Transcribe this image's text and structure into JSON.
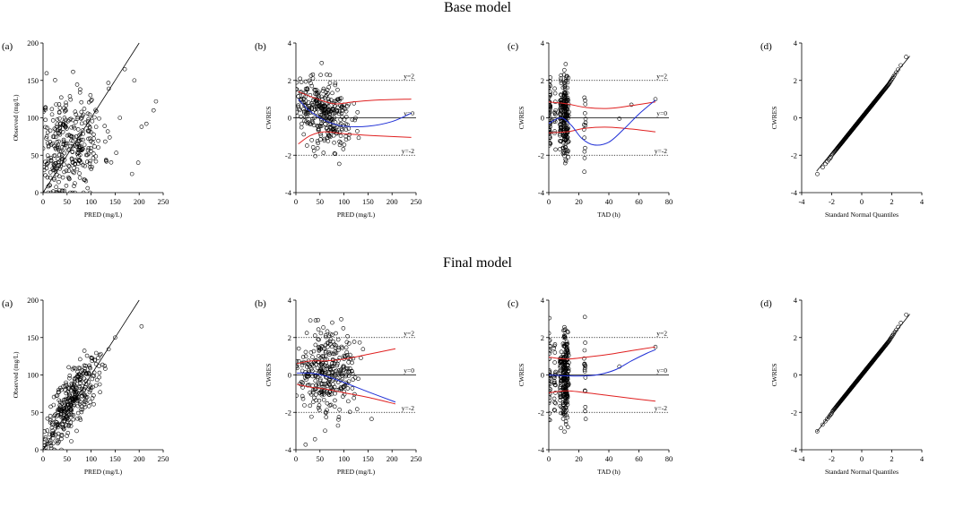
{
  "titles": {
    "base": "Base model",
    "final": "Final model"
  },
  "chart_data": [
    {
      "id": "base-a",
      "type": "scatter",
      "panel_label": "(a)",
      "xlabel": "PRED (mg/L)",
      "ylabel": "Observed (mg/L)",
      "xlim": [
        0,
        250
      ],
      "ylim": [
        0,
        200
      ],
      "xticks": [
        0,
        50,
        100,
        150,
        200,
        250
      ],
      "yticks": [
        0,
        50,
        100,
        150,
        200
      ],
      "reference_line": {
        "kind": "identity",
        "from": [
          0,
          0
        ],
        "to": [
          200,
          200
        ]
      },
      "point_model": {
        "n": 330,
        "x_center": 55,
        "x_spread": 35,
        "y_center": 65,
        "y_spread": 35,
        "slope": 0.15,
        "seed": 11
      },
      "highlighted_points": [
        [
          170,
          165
        ],
        [
          190,
          150
        ],
        [
          198,
          40
        ],
        [
          205,
          88
        ],
        [
          215,
          92
        ],
        [
          230,
          110
        ],
        [
          235,
          122
        ],
        [
          160,
          100
        ],
        [
          185,
          25
        ]
      ]
    },
    {
      "id": "base-b",
      "type": "scatter",
      "panel_label": "(b)",
      "xlabel": "PRED (mg/L)",
      "ylabel": "CWRES",
      "xlim": [
        0,
        250
      ],
      "ylim": [
        -4,
        4
      ],
      "xticks": [
        0,
        50,
        100,
        150,
        200,
        250
      ],
      "yticks": [
        -4,
        -2,
        0,
        2,
        4
      ],
      "hlines": [
        {
          "y": 2,
          "label": "y=2",
          "style": "dotted"
        },
        {
          "y": 0,
          "label": "y=0",
          "style": "solid"
        },
        {
          "y": -2,
          "label": "y=-2",
          "style": "dotted"
        }
      ],
      "trend_line": {
        "color": "#1f2fd6",
        "points": [
          [
            5,
            1.0
          ],
          [
            25,
            0.45
          ],
          [
            50,
            0.0
          ],
          [
            75,
            -0.3
          ],
          [
            100,
            -0.45
          ],
          [
            150,
            -0.45
          ],
          [
            200,
            -0.2
          ],
          [
            240,
            0.25
          ]
        ]
      },
      "upper_band": {
        "color": "#e02020",
        "points": [
          [
            5,
            1.4
          ],
          [
            40,
            1.05
          ],
          [
            80,
            0.75
          ],
          [
            120,
            0.85
          ],
          [
            170,
            0.95
          ],
          [
            240,
            1.0
          ]
        ]
      },
      "lower_band": {
        "color": "#e02020",
        "points": [
          [
            5,
            -1.4
          ],
          [
            30,
            -0.95
          ],
          [
            60,
            -0.75
          ],
          [
            100,
            -0.85
          ],
          [
            160,
            -0.95
          ],
          [
            240,
            -1.05
          ]
        ]
      },
      "point_model": {
        "n": 320,
        "x_center": 55,
        "x_spread": 30,
        "y_center": 0.3,
        "y_spread": 0.85,
        "slope": -0.012,
        "seed": 23
      }
    },
    {
      "id": "base-c",
      "type": "scatter",
      "panel_label": "(c)",
      "xlabel": "TAD (h)",
      "ylabel": "CWRES",
      "xlim": [
        0,
        80
      ],
      "ylim": [
        -4,
        4
      ],
      "xticks": [
        0,
        20,
        40,
        60,
        80
      ],
      "yticks": [
        -4,
        -2,
        0,
        2,
        4
      ],
      "hlines": [
        {
          "y": 2,
          "label": "y=2",
          "style": "dotted"
        },
        {
          "y": 0,
          "label": "y=0",
          "style": "solid"
        },
        {
          "y": -2,
          "label": "y=-2",
          "style": "dotted"
        }
      ],
      "trend_line": {
        "color": "#1f2fd6",
        "points": [
          [
            0,
            -0.3
          ],
          [
            8,
            0.0
          ],
          [
            15,
            -0.4
          ],
          [
            22,
            -1.1
          ],
          [
            30,
            -1.45
          ],
          [
            40,
            -1.3
          ],
          [
            50,
            -0.6
          ],
          [
            60,
            0.2
          ],
          [
            71,
            0.95
          ]
        ]
      },
      "upper_band": {
        "color": "#e02020",
        "points": [
          [
            0,
            0.85
          ],
          [
            12,
            0.75
          ],
          [
            25,
            0.55
          ],
          [
            40,
            0.5
          ],
          [
            55,
            0.65
          ],
          [
            71,
            0.85
          ]
        ]
      },
      "lower_band": {
        "color": "#e02020",
        "points": [
          [
            0,
            -0.8
          ],
          [
            12,
            -0.75
          ],
          [
            25,
            -0.55
          ],
          [
            40,
            -0.5
          ],
          [
            55,
            -0.6
          ],
          [
            71,
            -0.75
          ]
        ]
      },
      "point_model": {
        "n": 300,
        "columns": [
          0.5,
          4,
          8,
          10,
          11,
          12,
          13,
          24
        ],
        "col_weights": [
          0.15,
          0.05,
          0.15,
          0.2,
          0.2,
          0.15,
          0.05,
          0.05
        ],
        "jitter": 0.6,
        "y_center": 0.2,
        "y_spread": 1.1,
        "seed": 37
      },
      "highlighted_points": [
        [
          47,
          -0.05
        ],
        [
          71,
          1.0
        ],
        [
          55,
          0.7
        ]
      ]
    },
    {
      "id": "base-d",
      "type": "qq",
      "panel_label": "(d)",
      "xlabel": "Standard Normal Quantiles",
      "ylabel": "CWRES",
      "xlim": [
        -4,
        4
      ],
      "ylim": [
        -4,
        4
      ],
      "xticks": [
        -4,
        -2,
        0,
        2,
        4
      ],
      "yticks": [
        -4,
        -2,
        0,
        2,
        4
      ],
      "reference_line": {
        "kind": "qq",
        "from": [
          -3,
          -2.85
        ],
        "to": [
          3.2,
          3.3
        ]
      },
      "point_model": {
        "n": 320,
        "qmin": -3.15,
        "qmax": 3.2,
        "tail_lift": 0.12
      }
    },
    {
      "id": "final-a",
      "type": "scatter",
      "panel_label": "(a)",
      "xlabel": "PRED (mg/L)",
      "ylabel": "Observed (mg/L)",
      "xlim": [
        0,
        250
      ],
      "ylim": [
        0,
        200
      ],
      "xticks": [
        0,
        50,
        100,
        150,
        200,
        250
      ],
      "yticks": [
        0,
        50,
        100,
        150,
        200
      ],
      "reference_line": {
        "kind": "identity",
        "from": [
          0,
          0
        ],
        "to": [
          200,
          200
        ]
      },
      "point_model": {
        "n": 330,
        "x_center": 62,
        "x_spread": 28,
        "y_center": 65,
        "y_spread": 20,
        "slope": 0.85,
        "seed": 51
      },
      "highlighted_points": [
        [
          205,
          165
        ],
        [
          150,
          150
        ],
        [
          120,
          128
        ],
        [
          2,
          2
        ],
        [
          4,
          6
        ],
        [
          6,
          3
        ],
        [
          3,
          10
        ],
        [
          8,
          8
        ]
      ]
    },
    {
      "id": "final-b",
      "type": "scatter",
      "panel_label": "(b)",
      "xlabel": "PRED (mg/L)",
      "ylabel": "CWRES",
      "xlim": [
        0,
        250
      ],
      "ylim": [
        -4,
        4
      ],
      "xticks": [
        0,
        50,
        100,
        150,
        200,
        250
      ],
      "yticks": [
        -4,
        -2,
        0,
        2,
        4
      ],
      "hlines": [
        {
          "y": 2,
          "label": "y=2",
          "style": "dotted"
        },
        {
          "y": 0,
          "label": "y=0",
          "style": "solid"
        },
        {
          "y": -2,
          "label": "y=-2",
          "style": "dotted"
        }
      ],
      "trend_line": {
        "color": "#1f2fd6",
        "points": [
          [
            2,
            0.1
          ],
          [
            30,
            0.1
          ],
          [
            60,
            -0.05
          ],
          [
            100,
            -0.4
          ],
          [
            150,
            -0.9
          ],
          [
            207,
            -1.45
          ]
        ]
      },
      "upper_band": {
        "color": "#e02020",
        "points": [
          [
            2,
            0.6
          ],
          [
            30,
            0.75
          ],
          [
            60,
            0.75
          ],
          [
            100,
            0.85
          ],
          [
            150,
            1.1
          ],
          [
            207,
            1.4
          ]
        ]
      },
      "lower_band": {
        "color": "#e02020",
        "points": [
          [
            2,
            -0.5
          ],
          [
            30,
            -0.65
          ],
          [
            60,
            -0.75
          ],
          [
            100,
            -0.95
          ],
          [
            150,
            -1.2
          ],
          [
            207,
            -1.55
          ]
        ]
      },
      "point_model": {
        "n": 340,
        "x_center": 62,
        "x_spread": 28,
        "y_center": 0.0,
        "y_spread": 1.1,
        "slope": 0.0,
        "seed": 67
      }
    },
    {
      "id": "final-c",
      "type": "scatter",
      "panel_label": "(c)",
      "xlabel": "TAD (h)",
      "ylabel": "CWRES",
      "xlim": [
        0,
        80
      ],
      "ylim": [
        -4,
        4
      ],
      "xticks": [
        0,
        20,
        40,
        60,
        80
      ],
      "yticks": [
        -4,
        -2,
        0,
        2,
        4
      ],
      "hlines": [
        {
          "y": 2,
          "label": "y=2",
          "style": "dotted"
        },
        {
          "y": 0,
          "label": "y=0",
          "style": "solid"
        },
        {
          "y": -2,
          "label": "y=-2",
          "style": "dotted"
        }
      ],
      "trend_line": {
        "color": "#1f2fd6",
        "points": [
          [
            0,
            0.0
          ],
          [
            12,
            -0.05
          ],
          [
            25,
            -0.05
          ],
          [
            35,
            0.05
          ],
          [
            45,
            0.3
          ],
          [
            55,
            0.75
          ],
          [
            65,
            1.15
          ],
          [
            71,
            1.35
          ]
        ]
      },
      "upper_band": {
        "color": "#e02020",
        "points": [
          [
            0,
            0.95
          ],
          [
            12,
            0.85
          ],
          [
            25,
            0.95
          ],
          [
            40,
            1.1
          ],
          [
            55,
            1.3
          ],
          [
            71,
            1.5
          ]
        ]
      },
      "lower_band": {
        "color": "#e02020",
        "points": [
          [
            0,
            -0.95
          ],
          [
            12,
            -0.85
          ],
          [
            25,
            -0.95
          ],
          [
            40,
            -1.1
          ],
          [
            55,
            -1.25
          ],
          [
            71,
            -1.4
          ]
        ]
      },
      "point_model": {
        "n": 320,
        "columns": [
          0.5,
          4,
          8,
          10,
          11,
          12,
          13,
          24
        ],
        "col_weights": [
          0.12,
          0.06,
          0.14,
          0.2,
          0.2,
          0.16,
          0.06,
          0.06
        ],
        "jitter": 0.6,
        "y_center": 0.0,
        "y_spread": 1.15,
        "seed": 79
      },
      "highlighted_points": [
        [
          47,
          0.45
        ],
        [
          71,
          1.5
        ],
        [
          24,
          3.1
        ]
      ]
    },
    {
      "id": "final-d",
      "type": "qq",
      "panel_label": "(d)",
      "xlabel": "Standard Normal Quantiles",
      "ylabel": "CWRES",
      "xlim": [
        -4,
        4
      ],
      "ylim": [
        -4,
        4
      ],
      "xticks": [
        -4,
        -2,
        0,
        2,
        4
      ],
      "yticks": [
        -4,
        -2,
        0,
        2,
        4
      ],
      "reference_line": {
        "kind": "qq",
        "from": [
          -3,
          -3.05
        ],
        "to": [
          3.2,
          3.25
        ]
      },
      "point_model": {
        "n": 330,
        "qmin": -3.1,
        "qmax": 3.2,
        "tail_lift": 0.1
      }
    }
  ]
}
